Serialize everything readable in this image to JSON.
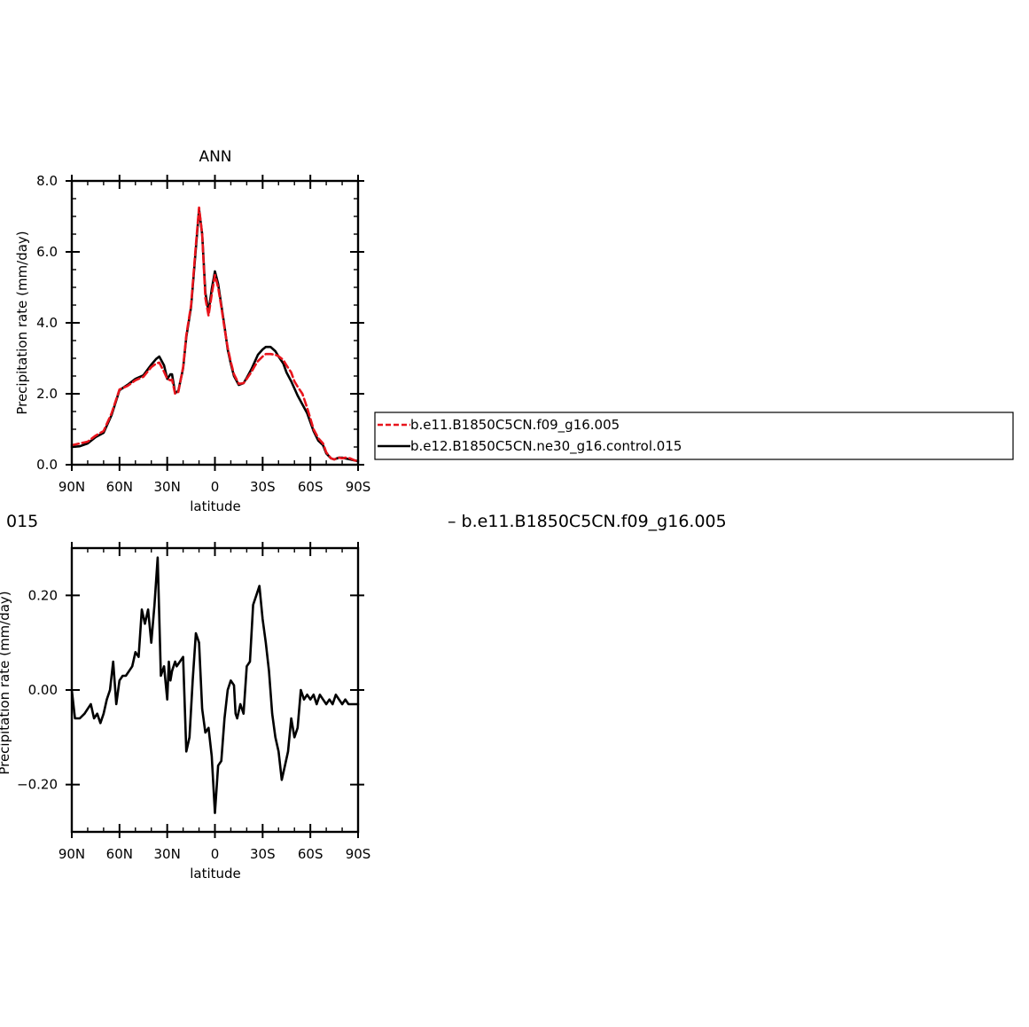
{
  "chart_data": [
    {
      "type": "line",
      "title": "ANN",
      "xlabel": "latitude",
      "ylabel": "Precipitation rate (mm/day)",
      "xlim": [
        90,
        -90
      ],
      "ylim": [
        0.0,
        8.0
      ],
      "x_tick_values": [
        90,
        60,
        30,
        0,
        -30,
        -60,
        -90
      ],
      "x_tick_labels": [
        "90N",
        "60N",
        "30N",
        "0",
        "30S",
        "60S",
        "90S"
      ],
      "y_tick_values": [
        0.0,
        2.0,
        4.0,
        6.0,
        8.0
      ],
      "y_tick_labels": [
        "0.0",
        "2.0",
        "4.0",
        "6.0",
        "8.0"
      ],
      "grid": false,
      "legend": "right, outside plot",
      "x": [
        90,
        85,
        80,
        75,
        70,
        65,
        60,
        55,
        50,
        45,
        40,
        37,
        35,
        32,
        30,
        28,
        27,
        25,
        23,
        20,
        18,
        15,
        12,
        10,
        8,
        6,
        4,
        2,
        0,
        -2,
        -4,
        -6,
        -8,
        -10,
        -12,
        -15,
        -18,
        -20,
        -23,
        -25,
        -27,
        -30,
        -32,
        -35,
        -38,
        -40,
        -43,
        -45,
        -48,
        -50,
        -52,
        -55,
        -58,
        -60,
        -62,
        -65,
        -68,
        -70,
        -73,
        -75,
        -78,
        -80,
        -82,
        -85,
        -88,
        -90
      ],
      "series": [
        {
          "name": "b.e11.B1850C5CN.f09_g16.005",
          "color": "#e8141c",
          "dash": "dashed",
          "values": [
            0.55,
            0.6,
            0.65,
            0.82,
            0.95,
            1.45,
            2.12,
            2.22,
            2.38,
            2.48,
            2.75,
            2.85,
            2.88,
            2.62,
            2.42,
            2.38,
            2.4,
            2.0,
            2.05,
            2.75,
            3.65,
            4.5,
            6.2,
            7.25,
            6.5,
            4.7,
            4.2,
            4.8,
            5.35,
            5.0,
            4.45,
            3.85,
            3.3,
            2.9,
            2.55,
            2.28,
            2.3,
            2.42,
            2.62,
            2.78,
            2.92,
            3.05,
            3.12,
            3.12,
            3.1,
            3.06,
            2.95,
            2.8,
            2.6,
            2.35,
            2.2,
            2.0,
            1.6,
            1.3,
            1.0,
            0.75,
            0.6,
            0.35,
            0.18,
            0.15,
            0.2,
            0.18,
            0.2,
            0.18,
            0.12,
            0.1
          ]
        },
        {
          "name": "b.e12.B1850C5CN.ne30_g16.control.015",
          "color": "#000000",
          "dash": "solid",
          "values": [
            0.5,
            0.52,
            0.6,
            0.78,
            0.9,
            1.4,
            2.1,
            2.25,
            2.42,
            2.52,
            2.82,
            2.98,
            3.05,
            2.8,
            2.42,
            2.55,
            2.55,
            2.02,
            2.08,
            2.72,
            3.6,
            4.45,
            6.1,
            7.2,
            6.5,
            4.85,
            4.3,
            4.95,
            5.45,
            5.1,
            4.5,
            3.9,
            3.25,
            2.85,
            2.5,
            2.25,
            2.3,
            2.45,
            2.7,
            2.9,
            3.1,
            3.25,
            3.32,
            3.32,
            3.2,
            3.05,
            2.85,
            2.6,
            2.35,
            2.15,
            1.95,
            1.7,
            1.45,
            1.2,
            0.95,
            0.68,
            0.55,
            0.32,
            0.18,
            0.15,
            0.2,
            0.2,
            0.18,
            0.15,
            0.12,
            0.1
          ]
        }
      ]
    },
    {
      "type": "line",
      "xlabel": "latitude",
      "xlim": [
        90,
        -90
      ],
      "ylim": [
        -0.3,
        0.3
      ],
      "x_tick_values": [
        90,
        60,
        30,
        0,
        -30,
        -60,
        -90
      ],
      "x_tick_labels": [
        "90N",
        "60N",
        "30N",
        "0",
        "30S",
        "60S",
        "90S"
      ],
      "y_tick_values": [
        -0.2,
        0.0,
        0.2
      ],
      "y_tick_labels": [
        "−0.20",
        "0.00",
        "0.20"
      ],
      "grid": false,
      "x": [
        90,
        88,
        85,
        82,
        80,
        78,
        76,
        74,
        72,
        70,
        68,
        66,
        64,
        62,
        60,
        58,
        56,
        54,
        52,
        50,
        48,
        46,
        44,
        42,
        40,
        38,
        36,
        34,
        32,
        30,
        29,
        28,
        27,
        26,
        25,
        24,
        22,
        20,
        18,
        16,
        14,
        12,
        10,
        8,
        6,
        4,
        2,
        0,
        -2,
        -4,
        -6,
        -8,
        -10,
        -12,
        -13,
        -14,
        -16,
        -18,
        -20,
        -22,
        -24,
        -26,
        -28,
        -30,
        -32,
        -34,
        -36,
        -38,
        -40,
        -42,
        -44,
        -46,
        -48,
        -50,
        -52,
        -54,
        -56,
        -58,
        -60,
        -62,
        -64,
        -66,
        -68,
        -70,
        -72,
        -74,
        -76,
        -78,
        -80,
        -82,
        -84,
        -86,
        -88,
        -90
      ],
      "series": [
        {
          "color": "#000000",
          "dash": "solid",
          "values": [
            0.0,
            -0.06,
            -0.06,
            -0.05,
            -0.04,
            -0.03,
            -0.06,
            -0.05,
            -0.07,
            -0.05,
            -0.02,
            0.0,
            0.06,
            -0.03,
            0.02,
            0.03,
            0.03,
            0.04,
            0.05,
            0.08,
            0.07,
            0.17,
            0.14,
            0.17,
            0.1,
            0.18,
            0.28,
            0.03,
            0.05,
            -0.02,
            0.06,
            0.02,
            0.04,
            0.05,
            0.06,
            0.05,
            0.06,
            0.07,
            -0.13,
            -0.1,
            0.02,
            0.12,
            0.1,
            -0.04,
            -0.09,
            -0.08,
            -0.14,
            -0.26,
            -0.16,
            -0.15,
            -0.06,
            0.0,
            0.02,
            0.01,
            -0.05,
            -0.06,
            -0.03,
            -0.05,
            0.05,
            0.06,
            0.18,
            0.2,
            0.22,
            0.15,
            0.1,
            0.04,
            -0.05,
            -0.1,
            -0.13,
            -0.19,
            -0.16,
            -0.13,
            -0.06,
            -0.1,
            -0.08,
            0.0,
            -0.02,
            -0.01,
            -0.02,
            -0.01,
            -0.03,
            -0.01,
            -0.02,
            -0.03,
            -0.02,
            -0.03,
            -0.01,
            -0.02,
            -0.03,
            -0.02,
            -0.03,
            -0.03,
            -0.03,
            -0.03
          ]
        }
      ]
    }
  ],
  "legend": {
    "items": [
      {
        "label": "b.e11.B1850C5CN.f09_g16.005",
        "color": "#e8141c",
        "dash": "dashed"
      },
      {
        "label": "b.e12.B1850C5CN.ne30_g16.control.015",
        "color": "#000000",
        "dash": "solid"
      }
    ]
  },
  "fragments": {
    "left_text": "015",
    "right_text": "– b.e11.B1850C5CN.f09_g16.005",
    "rotated_label_clip": "Precipitation rate (mm/day)"
  }
}
